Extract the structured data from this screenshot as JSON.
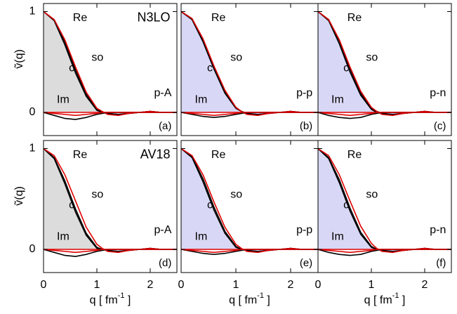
{
  "chart_data": [
    {
      "type": "line",
      "model": "N3LO",
      "reaction": "p-A",
      "panel": "(a)",
      "ylabel": "ṽ(q)",
      "fill_color": "#dcdcdc",
      "x": [
        0,
        0.2,
        0.4,
        0.6,
        0.8,
        1.0,
        1.1,
        1.2,
        1.4,
        1.6,
        1.8,
        2.0,
        2.2,
        2.5
      ],
      "series": [
        {
          "name": "Re",
          "color": "#000000",
          "values": [
            1,
            0.92,
            0.7,
            0.42,
            0.18,
            0.03,
            0,
            -0.01,
            -0.02,
            -0.01,
            0,
            0.01,
            0,
            0
          ]
        },
        {
          "name": "c",
          "color": "#000000",
          "values": [
            1,
            0.91,
            0.67,
            0.39,
            0.16,
            0.02,
            0,
            -0.01,
            -0.02,
            -0.01,
            0,
            0.01,
            0,
            0
          ]
        },
        {
          "name": "so",
          "color": "#e00000",
          "values": [
            1,
            0.92,
            0.72,
            0.45,
            0.2,
            0.04,
            0.01,
            -0.02,
            -0.03,
            -0.01,
            0,
            0.01,
            0,
            0
          ]
        },
        {
          "name": "Im",
          "color": "#000000",
          "values": [
            0,
            -0.03,
            -0.06,
            -0.07,
            -0.05,
            -0.02,
            -0.01,
            0,
            0,
            0,
            0,
            0,
            0,
            0
          ]
        },
        {
          "color": "#e00000",
          "values": [
            0,
            -0.01,
            -0.02,
            -0.03,
            -0.02,
            -0.01,
            0,
            0,
            0,
            0,
            0,
            0,
            0,
            0
          ]
        }
      ],
      "xlim": [
        0,
        2.5
      ],
      "ylim": [
        -0.23,
        1.08
      ],
      "xticks": [
        0,
        1,
        2
      ],
      "yticks": [
        0,
        1
      ]
    },
    {
      "type": "line",
      "reaction": "p-p",
      "panel": "(b)",
      "fill_color": "#d8d8f6",
      "x": [
        0,
        0.2,
        0.4,
        0.6,
        0.8,
        1.0,
        1.1,
        1.2,
        1.4,
        1.6,
        1.8,
        2.0,
        2.2,
        2.5
      ],
      "series": [
        {
          "name": "Re",
          "color": "#000000",
          "values": [
            1,
            0.93,
            0.72,
            0.45,
            0.21,
            0.05,
            0.01,
            -0.01,
            -0.02,
            -0.01,
            0,
            0.01,
            0,
            0
          ]
        },
        {
          "name": "c",
          "color": "#000000",
          "values": [
            1,
            0.92,
            0.7,
            0.43,
            0.19,
            0.04,
            0.01,
            -0.01,
            -0.02,
            -0.01,
            0,
            0.01,
            0,
            0
          ]
        },
        {
          "name": "so",
          "color": "#e00000",
          "values": [
            1,
            0.93,
            0.73,
            0.46,
            0.22,
            0.05,
            0.01,
            -0.02,
            -0.03,
            -0.01,
            0,
            0.01,
            0,
            0
          ]
        },
        {
          "name": "Im",
          "color": "#000000",
          "values": [
            0,
            -0.02,
            -0.04,
            -0.05,
            -0.04,
            -0.02,
            -0.01,
            0,
            0,
            0,
            0,
            0,
            0,
            0
          ]
        },
        {
          "color": "#e00000",
          "values": [
            0,
            -0.01,
            -0.02,
            -0.03,
            -0.02,
            -0.01,
            0,
            0,
            0,
            0,
            0,
            0,
            0,
            0
          ]
        }
      ],
      "xlim": [
        0,
        2.5
      ],
      "ylim": [
        -0.23,
        1.08
      ],
      "xticks": [
        0,
        1,
        2
      ],
      "yticks": [
        0,
        1
      ]
    },
    {
      "type": "line",
      "reaction": "p-n",
      "panel": "(c)",
      "fill_color": "#d8d8f6",
      "x": [
        0,
        0.2,
        0.4,
        0.6,
        0.8,
        1.0,
        1.1,
        1.2,
        1.4,
        1.6,
        1.8,
        2.0,
        2.2,
        2.5
      ],
      "series": [
        {
          "name": "Re",
          "color": "#000000",
          "values": [
            1,
            0.92,
            0.71,
            0.43,
            0.19,
            0.04,
            0.01,
            -0.01,
            -0.02,
            -0.01,
            0,
            0.01,
            0,
            0
          ]
        },
        {
          "name": "c",
          "color": "#000000",
          "values": [
            1,
            0.91,
            0.68,
            0.4,
            0.17,
            0.03,
            0,
            -0.01,
            -0.02,
            -0.01,
            0,
            0.01,
            0,
            0
          ]
        },
        {
          "name": "so",
          "color": "#e00000",
          "values": [
            1,
            0.92,
            0.72,
            0.45,
            0.21,
            0.05,
            0.01,
            -0.02,
            -0.03,
            -0.01,
            0,
            0.01,
            0,
            0
          ]
        },
        {
          "name": "Im",
          "color": "#000000",
          "values": [
            0,
            -0.03,
            -0.05,
            -0.06,
            -0.05,
            -0.02,
            -0.01,
            0,
            0,
            0,
            0,
            0,
            0,
            0
          ]
        },
        {
          "color": "#e00000",
          "values": [
            0,
            -0.01,
            -0.02,
            -0.03,
            -0.02,
            -0.01,
            0,
            0,
            0,
            0,
            0,
            0,
            0,
            0
          ]
        }
      ],
      "xlim": [
        0,
        2.5
      ],
      "ylim": [
        -0.23,
        1.08
      ],
      "xticks": [
        0,
        1,
        2
      ],
      "yticks": [
        0,
        1
      ]
    },
    {
      "type": "line",
      "model": "AV18",
      "reaction": "p-A",
      "panel": "(d)",
      "ylabel": "ṽ(q)",
      "xlabel": [
        "q  [ fm",
        "-1",
        " ]"
      ],
      "fill_color": "#dcdcdc",
      "x": [
        0,
        0.2,
        0.4,
        0.6,
        0.8,
        1.0,
        1.1,
        1.2,
        1.4,
        1.6,
        1.8,
        2.0,
        2.2,
        2.5
      ],
      "series": [
        {
          "name": "Re",
          "color": "#000000",
          "values": [
            1,
            0.91,
            0.68,
            0.4,
            0.16,
            0.02,
            0,
            -0.01,
            -0.02,
            -0.01,
            0,
            0.01,
            0,
            0
          ]
        },
        {
          "name": "c",
          "color": "#000000",
          "values": [
            1,
            0.9,
            0.65,
            0.37,
            0.14,
            0.01,
            0,
            -0.01,
            -0.02,
            -0.01,
            0,
            0.01,
            0,
            0
          ]
        },
        {
          "name": "so",
          "color": "#e00000",
          "values": [
            1,
            0.93,
            0.74,
            0.48,
            0.22,
            0.05,
            0.01,
            -0.02,
            -0.03,
            -0.01,
            0,
            0.01,
            0,
            0
          ]
        },
        {
          "name": "Im",
          "color": "#000000",
          "values": [
            0,
            -0.03,
            -0.06,
            -0.07,
            -0.05,
            -0.02,
            -0.01,
            0,
            0,
            0,
            0,
            0,
            0,
            0
          ]
        },
        {
          "color": "#e00000",
          "values": [
            0,
            -0.01,
            -0.02,
            -0.03,
            -0.02,
            -0.01,
            0,
            0,
            0,
            0,
            0,
            0,
            0,
            0
          ]
        }
      ],
      "xlim": [
        0,
        2.5
      ],
      "ylim": [
        -0.23,
        1.08
      ],
      "xticks": [
        0,
        1,
        2
      ],
      "yticks": [
        0,
        1
      ]
    },
    {
      "type": "line",
      "reaction": "p-p",
      "panel": "(e)",
      "xlabel": [
        "q  [ fm",
        "-1",
        " ]"
      ],
      "fill_color": "#d8d8f6",
      "x": [
        0,
        0.2,
        0.4,
        0.6,
        0.8,
        1.0,
        1.1,
        1.2,
        1.4,
        1.6,
        1.8,
        2.0,
        2.2,
        2.5
      ],
      "series": [
        {
          "name": "Re",
          "color": "#000000",
          "values": [
            1,
            0.92,
            0.7,
            0.42,
            0.18,
            0.03,
            0,
            -0.01,
            -0.02,
            -0.01,
            0,
            0.01,
            0,
            0
          ]
        },
        {
          "name": "c",
          "color": "#000000",
          "values": [
            1,
            0.91,
            0.67,
            0.39,
            0.16,
            0.02,
            0,
            -0.01,
            -0.02,
            -0.01,
            0,
            0.01,
            0,
            0
          ]
        },
        {
          "name": "so",
          "color": "#e00000",
          "values": [
            1,
            0.93,
            0.74,
            0.47,
            0.22,
            0.05,
            0.01,
            -0.02,
            -0.03,
            -0.01,
            0,
            0.01,
            0,
            0
          ]
        },
        {
          "name": "Im",
          "color": "#000000",
          "values": [
            0,
            -0.02,
            -0.04,
            -0.05,
            -0.04,
            -0.02,
            -0.01,
            0,
            0,
            0,
            0,
            0,
            0,
            0
          ]
        },
        {
          "color": "#e00000",
          "values": [
            0,
            -0.01,
            -0.02,
            -0.03,
            -0.02,
            -0.01,
            0,
            0,
            0,
            0,
            0,
            0,
            0,
            0
          ]
        }
      ],
      "xlim": [
        0,
        2.5
      ],
      "ylim": [
        -0.23,
        1.08
      ],
      "xticks": [
        0,
        1,
        2
      ],
      "yticks": [
        0,
        1
      ]
    },
    {
      "type": "line",
      "reaction": "p-n",
      "panel": "(f)",
      "xlabel": [
        "q  [ fm",
        "-1",
        " ]"
      ],
      "fill_color": "#d8d8f6",
      "x": [
        0,
        0.2,
        0.4,
        0.6,
        0.8,
        1.0,
        1.1,
        1.2,
        1.4,
        1.6,
        1.8,
        2.0,
        2.2,
        2.5
      ],
      "series": [
        {
          "name": "Re",
          "color": "#000000",
          "values": [
            1,
            0.91,
            0.69,
            0.41,
            0.17,
            0.03,
            0,
            -0.01,
            -0.02,
            -0.01,
            0,
            0.01,
            0,
            0
          ]
        },
        {
          "name": "c",
          "color": "#000000",
          "values": [
            1,
            0.9,
            0.66,
            0.38,
            0.15,
            0.02,
            0,
            -0.01,
            -0.02,
            -0.01,
            0,
            0.01,
            0,
            0
          ]
        },
        {
          "name": "so",
          "color": "#e00000",
          "values": [
            1,
            0.93,
            0.74,
            0.48,
            0.23,
            0.06,
            0.01,
            -0.02,
            -0.03,
            -0.01,
            0,
            0.01,
            0,
            0
          ]
        },
        {
          "name": "Im",
          "color": "#000000",
          "values": [
            0,
            -0.03,
            -0.05,
            -0.06,
            -0.05,
            -0.02,
            -0.01,
            0,
            0,
            0,
            0,
            0,
            0,
            0
          ]
        },
        {
          "color": "#e00000",
          "values": [
            0,
            -0.01,
            -0.02,
            -0.03,
            -0.02,
            -0.01,
            0,
            0,
            0,
            0,
            0,
            0,
            0,
            0
          ]
        }
      ],
      "xlim": [
        0,
        2.5
      ],
      "ylim": [
        -0.23,
        1.08
      ],
      "xticks": [
        0,
        1,
        2
      ],
      "yticks": [
        0,
        1
      ]
    }
  ]
}
